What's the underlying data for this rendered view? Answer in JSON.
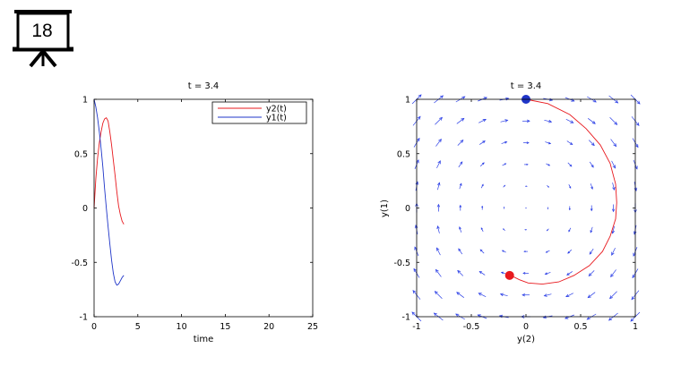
{
  "slide": {
    "number": "18"
  },
  "colors": {
    "red": "#e8191e",
    "blue": "#1f35c8",
    "quiver": "#2a3ee6"
  },
  "chart_data": [
    {
      "type": "line",
      "title": "t = 3.4",
      "xlabel": "time",
      "ylabel": "",
      "xlim": [
        0,
        25
      ],
      "ylim": [
        -1,
        1
      ],
      "xticks": [
        "0",
        "5",
        "10",
        "15",
        "20",
        "25"
      ],
      "yticks": [
        "1",
        "0.5",
        "0",
        "-0.5",
        "-1"
      ],
      "legend": {
        "placement": "top-right",
        "entries": [
          "y2(t)",
          "y1(t)"
        ]
      },
      "series": [
        {
          "name": "y2(t)",
          "color": "#e8191e",
          "x": [
            0.0,
            0.2,
            0.4,
            0.6,
            0.8,
            1.0,
            1.2,
            1.4,
            1.6,
            1.8,
            2.0,
            2.2,
            2.4,
            2.6,
            2.8,
            3.0,
            3.2,
            3.4
          ],
          "y": [
            0.0,
            0.27,
            0.46,
            0.6,
            0.7,
            0.78,
            0.82,
            0.83,
            0.8,
            0.7,
            0.58,
            0.44,
            0.3,
            0.15,
            0.02,
            -0.06,
            -0.12,
            -0.15
          ]
        },
        {
          "name": "y1(t)",
          "color": "#1f35c8",
          "x": [
            0.0,
            0.2,
            0.4,
            0.6,
            0.8,
            1.0,
            1.2,
            1.4,
            1.6,
            1.8,
            2.0,
            2.2,
            2.4,
            2.6,
            2.8,
            3.0,
            3.2,
            3.4
          ],
          "y": [
            1.0,
            0.93,
            0.83,
            0.7,
            0.55,
            0.38,
            0.18,
            0.0,
            -0.17,
            -0.33,
            -0.48,
            -0.6,
            -0.68,
            -0.71,
            -0.7,
            -0.67,
            -0.64,
            -0.62
          ]
        }
      ]
    },
    {
      "type": "line",
      "title": "t = 3.4",
      "xlabel": "y(2)",
      "ylabel": "y(1)",
      "xlim": [
        -1,
        1
      ],
      "ylim": [
        -1,
        1
      ],
      "xticks": [
        "-1",
        "-0.5",
        "0",
        "0.5",
        "1"
      ],
      "yticks": [
        "1",
        "0.5",
        "0",
        "-0.5",
        "-1"
      ],
      "series": [
        {
          "color": "#e8191e",
          "x": [
            0.0,
            0.2,
            0.4,
            0.55,
            0.68,
            0.77,
            0.82,
            0.83,
            0.82,
            0.77,
            0.7,
            0.58,
            0.44,
            0.3,
            0.15,
            0.02,
            -0.06,
            -0.12,
            -0.15
          ],
          "y": [
            1.0,
            0.96,
            0.86,
            0.73,
            0.58,
            0.41,
            0.22,
            0.05,
            -0.1,
            -0.26,
            -0.4,
            -0.53,
            -0.62,
            -0.68,
            -0.7,
            -0.69,
            -0.66,
            -0.63,
            -0.62
          ]
        }
      ],
      "markers": [
        {
          "x": 0.0,
          "y": 1.0,
          "color": "#1f35c8"
        },
        {
          "x": -0.15,
          "y": -0.62,
          "color": "#e8191e"
        }
      ],
      "quiver": {
        "grid_x": [
          -1,
          -0.8,
          -0.6,
          -0.4,
          -0.2,
          0,
          0.2,
          0.4,
          0.6,
          0.8,
          1
        ],
        "grid_y": [
          -1,
          -0.8,
          -0.6,
          -0.4,
          -0.2,
          0,
          0.2,
          0.4,
          0.6,
          0.8,
          1
        ],
        "field": "rotation"
      }
    }
  ]
}
